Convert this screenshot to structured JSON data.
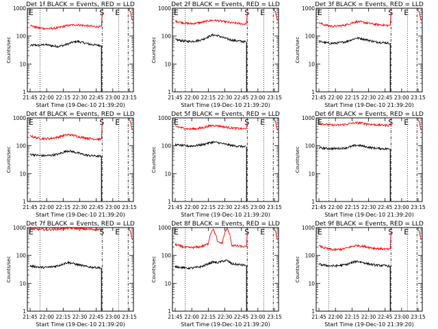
{
  "figure": {
    "background": "#ffffff",
    "colors": {
      "events": "#000000",
      "lld": "#ff0000",
      "axis": "#000000"
    }
  },
  "chart_data": [
    {
      "type": "line",
      "title": "Det 1f BLACK = Events, RED = LLD",
      "xlabel": "Start Time (19-Dec-10 21:39:20)",
      "ylabel": "Counts/sec",
      "yscale": "log",
      "ylim": [
        1,
        1000
      ],
      "x_tick_labels": [
        "21:45",
        "22:00",
        "22:15",
        "22:30",
        "22:45",
        "23:00",
        "23:15"
      ],
      "y_tick_labels": [
        "1",
        "10",
        "100",
        "1000"
      ],
      "markers": [
        "E",
        "S",
        "E"
      ],
      "series": [
        {
          "name": "Events",
          "color": "#000000",
          "values": [
            45,
            48,
            46,
            50,
            47,
            44,
            43,
            46,
            52,
            60,
            65,
            60,
            54,
            50,
            48,
            46
          ]
        },
        {
          "name": "LLD",
          "color": "#ff0000",
          "values": [
            250,
            210,
            195,
            190,
            185,
            190,
            200,
            220,
            240,
            250,
            255,
            245,
            235,
            225,
            220,
            215
          ]
        }
      ]
    },
    {
      "type": "line",
      "title": "Det 2f BLACK = Events, RED = LLD",
      "xlabel": "Start Time (19-Dec-10 21:39:20)",
      "ylabel": "Counts/sec",
      "yscale": "log",
      "ylim": [
        1,
        1000
      ],
      "x_tick_labels": [
        "21:45",
        "22:00",
        "22:15",
        "22:30",
        "22:45",
        "23:00",
        "23:15"
      ],
      "y_tick_labels": [
        "1",
        "10",
        "100",
        "1000"
      ],
      "markers": [
        "E",
        "S",
        "E"
      ],
      "series": [
        {
          "name": "Events",
          "color": "#000000",
          "values": [
            75,
            70,
            66,
            64,
            66,
            70,
            78,
            95,
            110,
            105,
            90,
            80,
            72,
            68,
            65,
            62
          ]
        },
        {
          "name": "LLD",
          "color": "#ff0000",
          "values": [
            350,
            320,
            295,
            280,
            285,
            300,
            320,
            350,
            370,
            360,
            340,
            320,
            300,
            290,
            280,
            270
          ]
        }
      ]
    },
    {
      "type": "line",
      "title": "Det 3f BLACK = Events, RED = LLD",
      "xlabel": "Start Time (19-Dec-10 21:39:20)",
      "ylabel": "Counts/sec",
      "yscale": "log",
      "ylim": [
        1,
        1000
      ],
      "x_tick_labels": [
        "21:45",
        "22:00",
        "22:15",
        "22:30",
        "22:45",
        "23:00",
        "23:15"
      ],
      "y_tick_labels": [
        "1",
        "10",
        "100",
        "1000"
      ],
      "markers": [
        "E",
        "S",
        "E"
      ],
      "series": [
        {
          "name": "Events",
          "color": "#000000",
          "values": [
            65,
            60,
            56,
            55,
            57,
            60,
            65,
            75,
            85,
            82,
            75,
            68,
            62,
            60,
            58,
            56
          ]
        },
        {
          "name": "LLD",
          "color": "#ff0000",
          "values": [
            300,
            260,
            235,
            225,
            230,
            240,
            260,
            300,
            330,
            320,
            300,
            280,
            265,
            255,
            245,
            240
          ]
        }
      ]
    },
    {
      "type": "line",
      "title": "Det 4f BLACK = Events, RED = LLD",
      "xlabel": "Start Time (19-Dec-10 21:39:20)",
      "ylabel": "Counts/sec",
      "yscale": "log",
      "ylim": [
        1,
        1000
      ],
      "x_tick_labels": [
        "21:45",
        "22:00",
        "22:15",
        "22:30",
        "22:45",
        "23:00",
        "23:15"
      ],
      "y_tick_labels": [
        "1",
        "10",
        "100",
        "1000"
      ],
      "markers": [
        "E",
        "S",
        "E"
      ],
      "series": [
        {
          "name": "Events",
          "color": "#000000",
          "values": [
            50,
            47,
            45,
            44,
            45,
            47,
            50,
            58,
            66,
            62,
            56,
            50,
            46,
            44,
            43,
            42
          ]
        },
        {
          "name": "LLD",
          "color": "#ff0000",
          "values": [
            230,
            200,
            185,
            180,
            182,
            190,
            205,
            230,
            250,
            240,
            220,
            200,
            190,
            180,
            175,
            170
          ]
        }
      ]
    },
    {
      "type": "line",
      "title": "Det 5f BLACK = Events, RED = LLD",
      "xlabel": "Start Time (19-Dec-10 21:39:20)",
      "ylabel": "Counts/sec",
      "yscale": "log",
      "ylim": [
        1,
        1000
      ],
      "x_tick_labels": [
        "21:45",
        "22:00",
        "22:15",
        "22:30",
        "22:45",
        "23:00",
        "23:15"
      ],
      "y_tick_labels": [
        "1",
        "10",
        "100",
        "1000"
      ],
      "markers": [
        "E",
        "S",
        "E"
      ],
      "series": [
        {
          "name": "Events",
          "color": "#000000",
          "values": [
            110,
            105,
            100,
            98,
            100,
            105,
            112,
            125,
            135,
            130,
            120,
            110,
            102,
            98,
            95,
            92
          ]
        },
        {
          "name": "LLD",
          "color": "#ff0000",
          "values": [
            500,
            460,
            420,
            400,
            405,
            420,
            450,
            500,
            540,
            520,
            490,
            460,
            440,
            420,
            410,
            400
          ]
        }
      ]
    },
    {
      "type": "line",
      "title": "Det 6f BLACK = Events, RED = LLD",
      "xlabel": "Start Time (19-Dec-10 21:39:20)",
      "ylabel": "Counts/sec",
      "yscale": "log",
      "ylim": [
        1,
        1000
      ],
      "x_tick_labels": [
        "21:45",
        "22:00",
        "22:15",
        "22:30",
        "22:45",
        "23:00",
        "23:15"
      ],
      "y_tick_labels": [
        "1",
        "10",
        "100",
        "1000"
      ],
      "markers": [
        "E",
        "S",
        "E"
      ],
      "series": [
        {
          "name": "Events",
          "color": "#000000",
          "values": [
            85,
            82,
            80,
            79,
            80,
            82,
            86,
            95,
            105,
            100,
            92,
            86,
            82,
            80,
            78,
            77
          ]
        },
        {
          "name": "LLD",
          "color": "#ff0000",
          "values": [
            650,
            600,
            570,
            550,
            555,
            570,
            600,
            640,
            670,
            650,
            620,
            590,
            570,
            555,
            545,
            540
          ]
        }
      ]
    },
    {
      "type": "line",
      "title": "Det 7f BLACK = Events, RED = LLD",
      "xlabel": "Start Time (19-Dec-10 21:39:20)",
      "ylabel": "Counts/sec",
      "yscale": "log",
      "ylim": [
        1,
        1000
      ],
      "x_tick_labels": [
        "21:45",
        "22:00",
        "22:15",
        "22:30",
        "22:45",
        "23:00",
        "23:15"
      ],
      "y_tick_labels": [
        "1",
        "10",
        "100",
        "1000"
      ],
      "markers": [
        "E",
        "S",
        "E"
      ],
      "series": [
        {
          "name": "Events",
          "color": "#000000",
          "values": [
            42,
            40,
            38,
            37,
            38,
            40,
            43,
            50,
            56,
            52,
            47,
            43,
            40,
            38,
            37,
            36
          ]
        },
        {
          "name": "LLD",
          "color": "#ff0000",
          "values": [
            900,
            880,
            860,
            850,
            855,
            870,
            890,
            920,
            950,
            940,
            920,
            900,
            880,
            870,
            860,
            850
          ]
        }
      ]
    },
    {
      "type": "line",
      "title": "Det 8f BLACK = Events, RED = LLD",
      "xlabel": "Start Time (19-Dec-10 21:39:20)",
      "ylabel": "Counts/sec",
      "yscale": "log",
      "ylim": [
        1,
        1000
      ],
      "x_tick_labels": [
        "21:45",
        "22:00",
        "22:15",
        "22:30",
        "22:45",
        "23:00",
        "23:15"
      ],
      "y_tick_labels": [
        "1",
        "10",
        "100",
        "1000"
      ],
      "markers": [
        "E",
        "S",
        "E"
      ],
      "series": [
        {
          "name": "Events",
          "color": "#000000",
          "values": [
            40,
            38,
            36,
            35,
            36,
            38,
            42,
            50,
            58,
            55,
            62,
            66,
            50,
            48,
            46,
            44
          ]
        },
        {
          "name": "LLD",
          "color": "#ff0000",
          "values": [
            250,
            220,
            200,
            190,
            195,
            200,
            220,
            260,
            900,
            300,
            270,
            950,
            230,
            220,
            210,
            205
          ]
        }
      ]
    },
    {
      "type": "line",
      "title": "Det 9f BLACK = Events, RED = LLD",
      "xlabel": "Start Time (19-Dec-10 21:39:20)",
      "ylabel": "Counts/sec",
      "yscale": "log",
      "ylim": [
        1,
        1000
      ],
      "x_tick_labels": [
        "21:45",
        "22:00",
        "22:15",
        "22:30",
        "22:45",
        "23:00",
        "23:15"
      ],
      "y_tick_labels": [
        "1",
        "10",
        "100",
        "1000"
      ],
      "markers": [
        "E",
        "S",
        "E"
      ],
      "series": [
        {
          "name": "Events",
          "color": "#000000",
          "values": [
            48,
            45,
            43,
            42,
            43,
            45,
            48,
            55,
            62,
            58,
            52,
            48,
            45,
            44,
            43,
            42
          ]
        },
        {
          "name": "LLD",
          "color": "#ff0000",
          "values": [
            220,
            190,
            170,
            160,
            162,
            170,
            185,
            210,
            230,
            220,
            205,
            190,
            180,
            175,
            170,
            165
          ]
        }
      ]
    }
  ]
}
